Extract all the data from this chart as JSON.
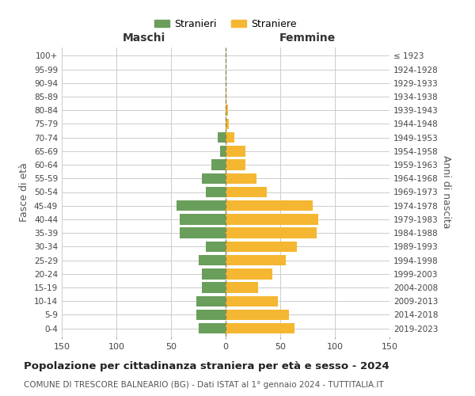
{
  "age_groups": [
    "0-4",
    "5-9",
    "10-14",
    "15-19",
    "20-24",
    "25-29",
    "30-34",
    "35-39",
    "40-44",
    "45-49",
    "50-54",
    "55-59",
    "60-64",
    "65-69",
    "70-74",
    "75-79",
    "80-84",
    "85-89",
    "90-94",
    "95-99",
    "100+"
  ],
  "birth_years": [
    "2019-2023",
    "2014-2018",
    "2009-2013",
    "2004-2008",
    "1999-2003",
    "1994-1998",
    "1989-1993",
    "1984-1988",
    "1979-1983",
    "1974-1978",
    "1969-1973",
    "1964-1968",
    "1959-1963",
    "1954-1958",
    "1949-1953",
    "1944-1948",
    "1939-1943",
    "1934-1938",
    "1929-1933",
    "1924-1928",
    "≤ 1923"
  ],
  "maschi": [
    25,
    27,
    27,
    22,
    22,
    25,
    18,
    42,
    42,
    45,
    18,
    22,
    13,
    5,
    7,
    0,
    0,
    0,
    0,
    0,
    0
  ],
  "femmine": [
    63,
    58,
    48,
    30,
    43,
    55,
    65,
    83,
    85,
    80,
    38,
    28,
    18,
    18,
    8,
    3,
    2,
    1,
    0,
    0,
    0
  ],
  "maschi_color": "#6a9e5b",
  "femmine_color": "#f5b731",
  "background_color": "#ffffff",
  "grid_color": "#cccccc",
  "title": "Popolazione per cittadinanza straniera per età e sesso - 2024",
  "subtitle": "COMUNE DI TRESCORE BALNEARIO (BG) - Dati ISTAT al 1° gennaio 2024 - TUTTITALIA.IT",
  "legend_maschi": "Stranieri",
  "legend_femmine": "Straniere",
  "xlabel_left": "Maschi",
  "xlabel_right": "Femmine",
  "ylabel_left": "Fasce di età",
  "ylabel_right": "Anni di nascita",
  "xlim": 150,
  "center_line_color": "#888855",
  "center_line_style": "--"
}
